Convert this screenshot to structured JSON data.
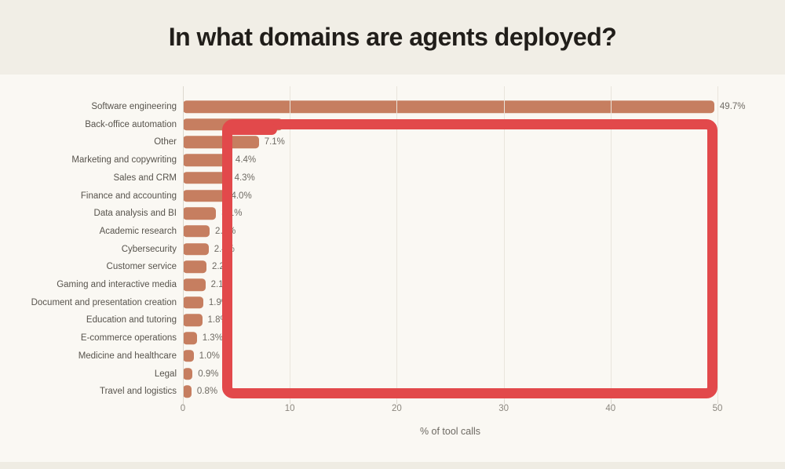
{
  "title": "In what domains are agents deployed?",
  "chart_data": {
    "type": "bar",
    "orientation": "horizontal",
    "title": "In what domains are agents deployed?",
    "xlabel": "% of tool calls",
    "xlim": [
      0,
      50
    ],
    "xticks": [
      0,
      10,
      20,
      30,
      40,
      50
    ],
    "grid": "vertical-lines-on",
    "categories": [
      "Software engineering",
      "Back-office automation",
      "Other",
      "Marketing and copywriting",
      "Sales and CRM",
      "Finance and accounting",
      "Data analysis and BI",
      "Academic research",
      "Cybersecurity",
      "Customer service",
      "Gaming and interactive media",
      "Document and presentation creation",
      "Education and tutoring",
      "E-commerce operations",
      "Medicine and healthcare",
      "Legal",
      "Travel and logistics"
    ],
    "values": [
      49.7,
      9.3,
      7.1,
      4.4,
      4.3,
      4.0,
      3.1,
      2.5,
      2.4,
      2.2,
      2.1,
      1.9,
      1.8,
      1.3,
      1.0,
      0.9,
      0.8
    ],
    "value_labels": [
      "49.7%",
      "9.3%",
      "7.1%",
      "4.4%",
      "4.3%",
      "4.0%",
      "3.1%",
      "2.5%",
      "2.4%",
      "2.2%",
      "2.1%",
      "1.9%",
      "1.8%",
      "1.3%",
      "1.0%",
      "0.9%",
      "0.8%"
    ],
    "annotation": {
      "shape": "rectangle",
      "description": "thick red hand-drawn highlight box over plot area",
      "color": "#e2494b"
    },
    "legend": "none"
  },
  "colors": {
    "band": "#f1eee6",
    "panel": "#faf8f3",
    "strip": "#efece3",
    "bar": "#c67e60",
    "red": "#e2494b",
    "title": "#211e1a",
    "cat": "#57534c",
    "val": "#6e6a63",
    "tick": "#8b877f",
    "grid": "#e9e5dc",
    "axis": "#dcd8cf"
  }
}
